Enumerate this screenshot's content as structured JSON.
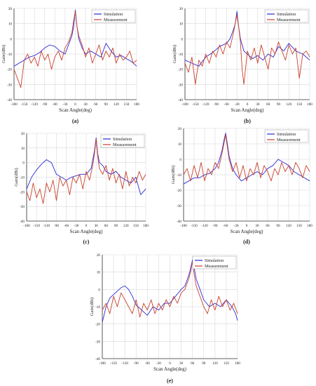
{
  "colors": {
    "simulation": "#2a2ad8",
    "measurement": "#c8412a",
    "grid": "#d8d8d8",
    "axis": "#333333"
  },
  "chart_data": [
    {
      "type": "line",
      "panel_label": "(a)",
      "xlabel": "Scan Angle(deg)",
      "ylabel": "Gain(dBi)",
      "xlim": [
        -180,
        180
      ],
      "ylim": [
        -40,
        20
      ],
      "xticks": [
        -180,
        -150,
        -120,
        -90,
        -60,
        -30,
        0,
        30,
        60,
        90,
        120,
        150,
        180
      ],
      "yticks": [
        -40,
        -30,
        -20,
        -10,
        0,
        10,
        20
      ],
      "legend_position": "top-right",
      "series": [
        {
          "name": "Simulation",
          "x": [
            -180,
            -165,
            -150,
            -135,
            -120,
            -105,
            -90,
            -75,
            -60,
            -45,
            -30,
            -20,
            -10,
            -5,
            0,
            5,
            10,
            20,
            30,
            45,
            60,
            75,
            90,
            105,
            120,
            135,
            150,
            165,
            180
          ],
          "y": [
            -18,
            -16,
            -14,
            -12,
            -11,
            -9,
            -6,
            -4,
            -5,
            -8,
            -10,
            -4,
            2,
            8,
            19,
            8,
            0,
            -6,
            -10,
            -8,
            -10,
            -12,
            -3,
            -8,
            -12,
            -11,
            -13,
            -15,
            -18
          ]
        },
        {
          "name": "Measurement",
          "x": [
            -180,
            -170,
            -160,
            -150,
            -140,
            -130,
            -120,
            -110,
            -100,
            -90,
            -80,
            -70,
            -60,
            -50,
            -40,
            -30,
            -20,
            -10,
            -5,
            0,
            5,
            10,
            20,
            30,
            40,
            50,
            60,
            70,
            80,
            90,
            100,
            110,
            120,
            130,
            140,
            150,
            160,
            170,
            180
          ],
          "y": [
            -20,
            -26,
            -32,
            -14,
            -10,
            -16,
            -12,
            -18,
            -8,
            -14,
            -10,
            -20,
            -12,
            -8,
            -14,
            -6,
            -2,
            4,
            12,
            18,
            8,
            2,
            -4,
            -12,
            -6,
            -16,
            -10,
            -4,
            -14,
            -8,
            -12,
            -6,
            -16,
            -10,
            -14,
            -12,
            -8,
            -16,
            -14
          ]
        }
      ]
    },
    {
      "type": "line",
      "panel_label": "(b)",
      "xlabel": "Scan Angle(deg)",
      "ylabel": "Gain(dBi)",
      "xlim": [
        -180,
        180
      ],
      "ylim": [
        -40,
        20
      ],
      "xticks": [
        -180,
        -150,
        -120,
        -90,
        -60,
        -30,
        0,
        30,
        60,
        90,
        120,
        150,
        180
      ],
      "yticks": [
        -40,
        -30,
        -20,
        -10,
        0,
        10,
        20
      ],
      "legend_position": "top-right",
      "series": [
        {
          "name": "Simulation",
          "x": [
            -180,
            -160,
            -140,
            -120,
            -100,
            -80,
            -60,
            -50,
            -40,
            -35,
            -30,
            -25,
            -20,
            -10,
            0,
            15,
            30,
            45,
            60,
            75,
            90,
            105,
            120,
            140,
            160,
            180
          ],
          "y": [
            -14,
            -16,
            -18,
            -12,
            -9,
            -5,
            -3,
            0,
            6,
            10,
            18,
            8,
            0,
            -8,
            -10,
            -13,
            -11,
            -14,
            -10,
            -12,
            -5,
            -8,
            -3,
            -8,
            -10,
            -14
          ]
        },
        {
          "name": "Measurement",
          "x": [
            -180,
            -170,
            -160,
            -150,
            -140,
            -130,
            -120,
            -110,
            -100,
            -90,
            -80,
            -70,
            -60,
            -50,
            -40,
            -35,
            -30,
            -25,
            -20,
            -15,
            -10,
            0,
            10,
            20,
            30,
            40,
            50,
            60,
            70,
            80,
            90,
            100,
            110,
            120,
            130,
            140,
            150,
            160,
            170,
            180
          ],
          "y": [
            -16,
            -22,
            -12,
            -30,
            -14,
            -18,
            -10,
            -16,
            -8,
            -12,
            -4,
            -10,
            -2,
            -6,
            4,
            10,
            16,
            8,
            -2,
            -20,
            -30,
            -8,
            -14,
            -6,
            -16,
            -4,
            -12,
            -20,
            -6,
            -10,
            -2,
            -8,
            -14,
            -4,
            -10,
            -6,
            -26,
            -10,
            -8,
            -12
          ]
        }
      ]
    },
    {
      "type": "line",
      "panel_label": "(c)",
      "xlabel": "Scan Angle(deg)",
      "ylabel": "Gain(dBi)",
      "xlim": [
        -180,
        180
      ],
      "ylim": [
        -40,
        20
      ],
      "xticks": [
        -180,
        -150,
        -120,
        -90,
        -60,
        -30,
        0,
        30,
        60,
        90,
        120,
        150,
        180
      ],
      "yticks": [
        -40,
        -30,
        -20,
        -10,
        0,
        10,
        20
      ],
      "legend_position": "top-right",
      "series": [
        {
          "name": "Simulation",
          "x": [
            -180,
            -165,
            -150,
            -135,
            -120,
            -105,
            -90,
            -75,
            -60,
            -45,
            -30,
            -15,
            0,
            15,
            20,
            25,
            30,
            35,
            40,
            50,
            60,
            75,
            90,
            105,
            120,
            135,
            150,
            165,
            180
          ],
          "y": [
            -18,
            -10,
            -5,
            -1,
            2,
            0,
            -8,
            -10,
            -12,
            -10,
            -9,
            -8,
            -8,
            -4,
            2,
            8,
            17,
            6,
            0,
            -2,
            -6,
            -8,
            -6,
            -10,
            -12,
            -14,
            -10,
            -22,
            -18
          ]
        },
        {
          "name": "Measurement",
          "x": [
            -180,
            -170,
            -160,
            -150,
            -140,
            -130,
            -120,
            -110,
            -100,
            -90,
            -80,
            -70,
            -60,
            -50,
            -40,
            -30,
            -20,
            -10,
            0,
            10,
            20,
            25,
            30,
            35,
            40,
            50,
            60,
            70,
            80,
            90,
            100,
            110,
            120,
            130,
            140,
            150,
            160,
            170,
            180
          ],
          "y": [
            -20,
            -26,
            -14,
            -24,
            -18,
            -28,
            -14,
            -20,
            -12,
            -26,
            -10,
            -16,
            -12,
            -22,
            -10,
            -14,
            -8,
            -18,
            -6,
            -12,
            -2,
            6,
            16,
            4,
            -4,
            -8,
            -2,
            -12,
            -4,
            -14,
            -8,
            -18,
            -6,
            -16,
            -10,
            -14,
            -6,
            -12,
            -8
          ]
        }
      ]
    },
    {
      "type": "line",
      "panel_label": "(d)",
      "xlabel": "Scan Angle(deg)",
      "ylabel": "Gain(dBi)",
      "xlim": [
        -180,
        180
      ],
      "ylim": [
        -40,
        20
      ],
      "xticks": [
        -180,
        -150,
        -120,
        -90,
        -60,
        -30,
        0,
        30,
        60,
        90,
        120,
        150,
        180
      ],
      "yticks": [
        -40,
        -30,
        -20,
        -10,
        0,
        10,
        20
      ],
      "legend_position": "top-right",
      "series": [
        {
          "name": "Simulation",
          "x": [
            -180,
            -165,
            -150,
            -135,
            -120,
            -105,
            -90,
            -80,
            -70,
            -65,
            -60,
            -55,
            -50,
            -40,
            -30,
            -15,
            0,
            15,
            30,
            45,
            60,
            75,
            90,
            105,
            120,
            135,
            150,
            165,
            180
          ],
          "y": [
            -16,
            -14,
            -12,
            -12,
            -10,
            -9,
            -6,
            -2,
            6,
            12,
            17,
            10,
            2,
            -6,
            -10,
            -14,
            -12,
            -10,
            -8,
            -10,
            -6,
            -4,
            0,
            -2,
            -4,
            -8,
            -10,
            -12,
            -14
          ]
        },
        {
          "name": "Measurement",
          "x": [
            -180,
            -170,
            -160,
            -150,
            -140,
            -130,
            -120,
            -110,
            -100,
            -90,
            -80,
            -70,
            -65,
            -60,
            -55,
            -50,
            -40,
            -30,
            -20,
            -10,
            0,
            10,
            20,
            30,
            40,
            50,
            60,
            70,
            80,
            90,
            100,
            110,
            120,
            130,
            140,
            150,
            160,
            170,
            180
          ],
          "y": [
            -10,
            -6,
            -14,
            -4,
            -12,
            -2,
            -14,
            -6,
            -10,
            -2,
            -6,
            4,
            10,
            16,
            8,
            0,
            -8,
            -2,
            -12,
            -4,
            -14,
            -6,
            -10,
            -2,
            -12,
            -4,
            -8,
            -14,
            -6,
            -10,
            -2,
            -8,
            -4,
            -10,
            -2,
            -6,
            -12,
            -4,
            -8
          ]
        }
      ]
    },
    {
      "type": "line",
      "panel_label": "(e)",
      "xlabel": "Scan Angle(deg)",
      "ylabel": "Gain(dBi)",
      "xlim": [
        -180,
        180
      ],
      "ylim": [
        -40,
        20
      ],
      "xticks": [
        -180,
        -150,
        -120,
        -90,
        -60,
        -30,
        0,
        30,
        60,
        90,
        120,
        150,
        180
      ],
      "yticks": [
        -40,
        -30,
        -20,
        -10,
        0,
        10,
        20
      ],
      "legend_position": "top-right",
      "series": [
        {
          "name": "Simulation",
          "x": [
            -180,
            -170,
            -160,
            -150,
            -140,
            -130,
            -120,
            -110,
            -100,
            -90,
            -75,
            -60,
            -45,
            -30,
            -15,
            0,
            15,
            30,
            40,
            50,
            55,
            60,
            65,
            70,
            80,
            90,
            105,
            120,
            135,
            150,
            165,
            175,
            180
          ],
          "y": [
            -19,
            -10,
            -5,
            -3,
            -1,
            1,
            2,
            0,
            -4,
            -9,
            -12,
            -15,
            -10,
            -12,
            -8,
            -8,
            -4,
            0,
            2,
            8,
            12,
            17,
            12,
            6,
            0,
            -6,
            -10,
            -8,
            -10,
            -6,
            -10,
            -14,
            -18
          ]
        },
        {
          "name": "Measurement",
          "x": [
            -180,
            -170,
            -160,
            -150,
            -140,
            -130,
            -120,
            -110,
            -100,
            -90,
            -80,
            -70,
            -60,
            -50,
            -40,
            -30,
            -20,
            -10,
            0,
            10,
            20,
            30,
            40,
            50,
            55,
            60,
            65,
            70,
            80,
            90,
            100,
            110,
            120,
            130,
            140,
            150,
            160,
            170,
            180
          ],
          "y": [
            -12,
            -8,
            -14,
            -4,
            -10,
            -2,
            -6,
            -10,
            -14,
            -6,
            -16,
            -8,
            -12,
            -6,
            -14,
            -8,
            -12,
            -6,
            -10,
            -4,
            -8,
            -2,
            0,
            6,
            10,
            16,
            8,
            2,
            -4,
            -10,
            -14,
            -6,
            -12,
            -4,
            -10,
            -6,
            -12,
            -8,
            -14
          ]
        }
      ]
    }
  ]
}
